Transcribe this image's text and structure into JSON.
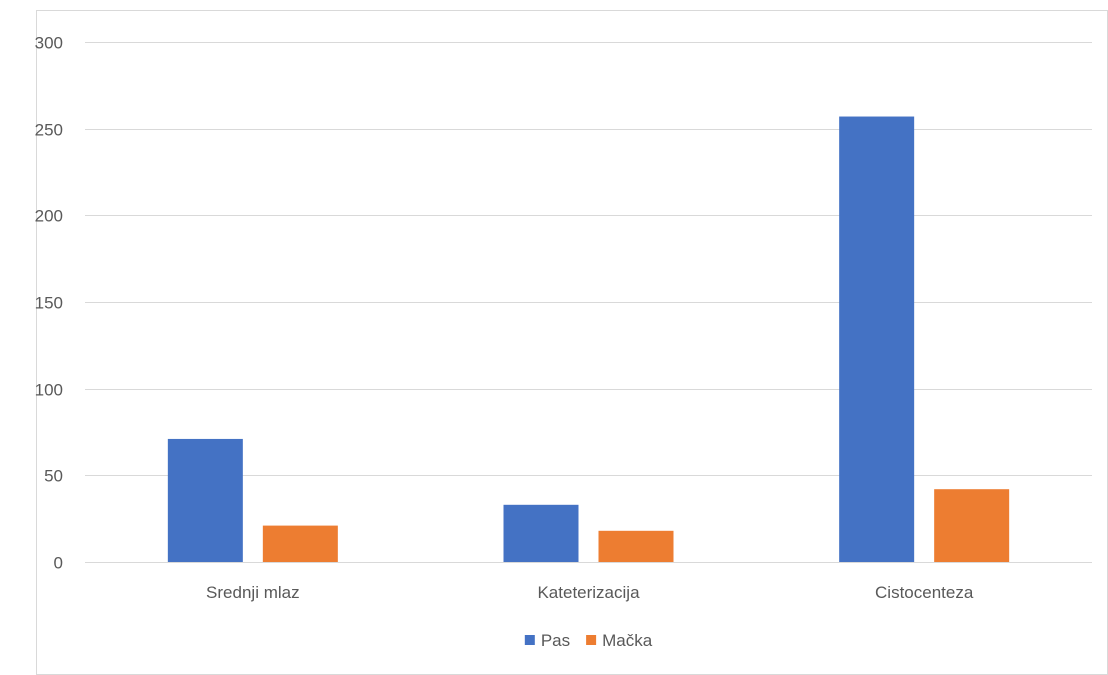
{
  "chart_data": {
    "type": "bar",
    "title": "",
    "xlabel": "",
    "ylabel": "",
    "categories": [
      "Srednji mlaz",
      "Kateterizacija",
      "Cistocenteza"
    ],
    "series": [
      {
        "name": "Pas",
        "color": "#4472C4",
        "values": [
          71,
          33,
          257
        ]
      },
      {
        "name": "Mačka",
        "color": "#ED7D31",
        "values": [
          21,
          18,
          42
        ]
      }
    ],
    "ylim": [
      0,
      300
    ],
    "yticks": [
      0,
      50,
      100,
      150,
      200,
      250,
      300
    ],
    "grid": true,
    "legend_position": "bottom",
    "colors": {
      "frame_border": "#D9D9D9",
      "gridline": "#D9D9D9",
      "text": "#595959"
    }
  }
}
